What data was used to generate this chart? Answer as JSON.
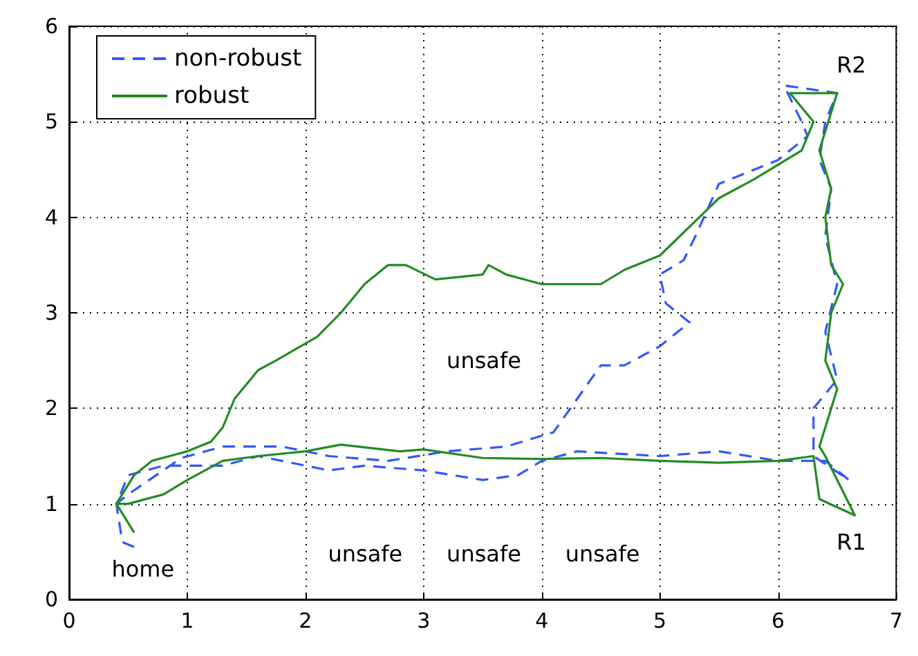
{
  "chart_data": {
    "type": "line",
    "xlim": [
      0,
      7
    ],
    "ylim": [
      0,
      6
    ],
    "xticks": [
      0,
      1,
      2,
      3,
      4,
      5,
      6,
      7
    ],
    "yticks": [
      0,
      1,
      2,
      3,
      4,
      5,
      6
    ],
    "grid": true,
    "legend": "top left",
    "marker": "none",
    "series": [
      {
        "name": "non-robust",
        "color": "#3355ff",
        "line_style": "dashed",
        "x": [
          0.55,
          0.45,
          0.4,
          0.5,
          0.8,
          1.3,
          1.6,
          1.8,
          2.2,
          2.5,
          3.0,
          3.5,
          3.8,
          4.0,
          4.3,
          5.0,
          5.5,
          6.0,
          6.4,
          6.6,
          6.3,
          6.3,
          6.5,
          6.4,
          6.5,
          6.4,
          6.45,
          6.35,
          6.4,
          6.5,
          6.05,
          6.2,
          6.25,
          6.0,
          5.8,
          5.5,
          5.3,
          5.2,
          5.0,
          5.05,
          5.25,
          5.0,
          4.7,
          4.5,
          4.3,
          4.1,
          3.7,
          3.2,
          2.7,
          2.2,
          1.8,
          1.3,
          0.95,
          0.5,
          0.4
        ],
        "values": [
          0.55,
          0.6,
          1.0,
          1.3,
          1.4,
          1.4,
          1.5,
          1.45,
          1.35,
          1.4,
          1.35,
          1.25,
          1.3,
          1.45,
          1.55,
          1.5,
          1.55,
          1.45,
          1.45,
          1.25,
          1.5,
          2.0,
          2.3,
          2.8,
          3.3,
          3.8,
          4.3,
          4.6,
          5.0,
          5.3,
          5.38,
          5.0,
          4.85,
          4.6,
          4.5,
          4.35,
          3.8,
          3.55,
          3.4,
          3.1,
          2.9,
          2.65,
          2.45,
          2.45,
          2.1,
          1.75,
          1.6,
          1.55,
          1.45,
          1.5,
          1.6,
          1.6,
          1.48,
          1.1,
          1.0
        ]
      },
      {
        "name": "robust",
        "color": "#228b22",
        "line_style": "solid",
        "x": [
          0.4,
          0.5,
          0.8,
          1.0,
          1.3,
          1.6,
          2.0,
          2.3,
          2.8,
          3.0,
          3.5,
          4.0,
          4.5,
          5.0,
          5.5,
          6.0,
          6.3,
          6.35,
          6.65,
          6.4,
          6.35,
          6.5,
          6.4,
          6.45,
          6.55,
          6.45,
          6.4,
          6.45,
          6.35,
          6.5,
          6.1,
          6.3,
          6.2,
          5.8,
          5.5,
          5.0,
          4.7,
          4.5,
          4.0,
          3.7,
          3.55,
          3.5,
          3.1,
          2.85,
          2.7,
          2.5,
          2.3,
          2.1,
          1.75,
          1.6,
          1.4,
          1.3,
          1.2,
          1.0,
          0.7,
          0.55,
          0.4,
          0.55
        ],
        "values": [
          1.0,
          1.0,
          1.1,
          1.25,
          1.45,
          1.5,
          1.55,
          1.62,
          1.55,
          1.57,
          1.48,
          1.47,
          1.48,
          1.45,
          1.43,
          1.45,
          1.5,
          1.05,
          0.88,
          1.5,
          1.6,
          2.2,
          2.5,
          3.0,
          3.3,
          3.5,
          4.0,
          4.3,
          4.7,
          5.3,
          5.3,
          5.0,
          4.7,
          4.4,
          4.2,
          3.6,
          3.45,
          3.3,
          3.3,
          3.4,
          3.5,
          3.4,
          3.35,
          3.5,
          3.5,
          3.3,
          3.0,
          2.75,
          2.5,
          2.4,
          2.1,
          1.8,
          1.65,
          1.55,
          1.45,
          1.3,
          1.0,
          0.7
        ]
      }
    ],
    "annotations": [
      "unsafe",
      "unsafe",
      "unsafe",
      "unsafe",
      "home",
      "R1",
      "R2"
    ]
  }
}
